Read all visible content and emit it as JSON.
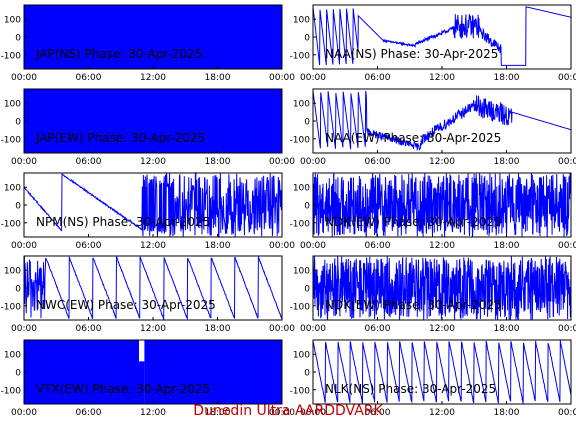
{
  "footer": {
    "text": "Dunedin Ultra AARDDVARK"
  },
  "colors": {
    "trace": "#0000ff",
    "axis": "#000000",
    "footer": "#cc0000"
  },
  "chart_data": [
    {
      "type": "line",
      "title": "JAP(NS) Phase: 30-Apr-2025",
      "ylim": [
        -180,
        180
      ],
      "yticks": [
        100,
        0,
        -100
      ],
      "xticks": [
        "00:00",
        "06:00",
        "12:00",
        "18:00",
        "00:00"
      ],
      "pattern": "solid"
    },
    {
      "type": "line",
      "title": "NAA(NS) Phase: 30-Apr-2025",
      "ylim": [
        -180,
        180
      ],
      "yticks": [
        100,
        0,
        -100
      ],
      "xticks": [
        "00:00",
        "06:00",
        "12:00",
        "18:00",
        "00:00"
      ],
      "pattern": "naa_ns"
    },
    {
      "type": "line",
      "title": "JAP(EW) Phase: 30-Apr-2025",
      "ylim": [
        -180,
        180
      ],
      "yticks": [
        100,
        0,
        -100
      ],
      "xticks": [
        "00:00",
        "06:00",
        "12:00",
        "18:00",
        "00:00"
      ],
      "pattern": "solid"
    },
    {
      "type": "line",
      "title": "NAA(EW) Phase: 30-Apr-2025",
      "ylim": [
        -180,
        180
      ],
      "yticks": [
        100,
        0,
        -100
      ],
      "xticks": [
        "00:00",
        "06:00",
        "12:00",
        "18:00",
        "00:00"
      ],
      "pattern": "naa_ew"
    },
    {
      "type": "line",
      "title": "NPM(NS) Phase: 30-Apr-2025",
      "ylim": [
        -180,
        180
      ],
      "yticks": [
        100,
        0,
        -100
      ],
      "xticks": [
        "00:00",
        "06:00",
        "12:00",
        "18:00",
        "00:00"
      ],
      "pattern": "npm"
    },
    {
      "type": "line",
      "title": "NDK(EW) Phase: 30-Apr-2025",
      "ylim": [
        -180,
        180
      ],
      "yticks": [
        100,
        0,
        -100
      ],
      "xticks": [
        "00:00",
        "06:00",
        "12:00",
        "18:00",
        "00:00"
      ],
      "pattern": "noise"
    },
    {
      "type": "line",
      "title": "NWC(EW) Phase: 30-Apr-2025",
      "ylim": [
        -180,
        180
      ],
      "yticks": [
        100,
        0,
        -100
      ],
      "xticks": [
        "00:00",
        "06:00",
        "12:00",
        "18:00",
        "00:00"
      ],
      "pattern": "nwc"
    },
    {
      "type": "line",
      "title": "NDK(EW) Phase: 30-Apr-2025",
      "ylim": [
        -180,
        180
      ],
      "yticks": [
        100,
        0,
        -100
      ],
      "xticks": [
        "00:00",
        "06:00",
        "12:00",
        "18:00",
        "00:00"
      ],
      "pattern": "noise"
    },
    {
      "type": "line",
      "title": "VTX(EW) Phase: 30-Apr-2025",
      "ylim": [
        -180,
        180
      ],
      "yticks": [
        100,
        0,
        -100
      ],
      "xticks": [
        "00:00",
        "06:00",
        "12:00",
        "18:00",
        "00:00"
      ],
      "pattern": "solid_gap"
    },
    {
      "type": "line",
      "title": "NLK(NS) Phase: 30-Apr-2025",
      "ylim": [
        -180,
        180
      ],
      "yticks": [
        100,
        0,
        -100
      ],
      "xticks": [
        "00:00",
        "06:00",
        "12:00",
        "18:00",
        "00:00"
      ],
      "pattern": "nlk"
    }
  ]
}
